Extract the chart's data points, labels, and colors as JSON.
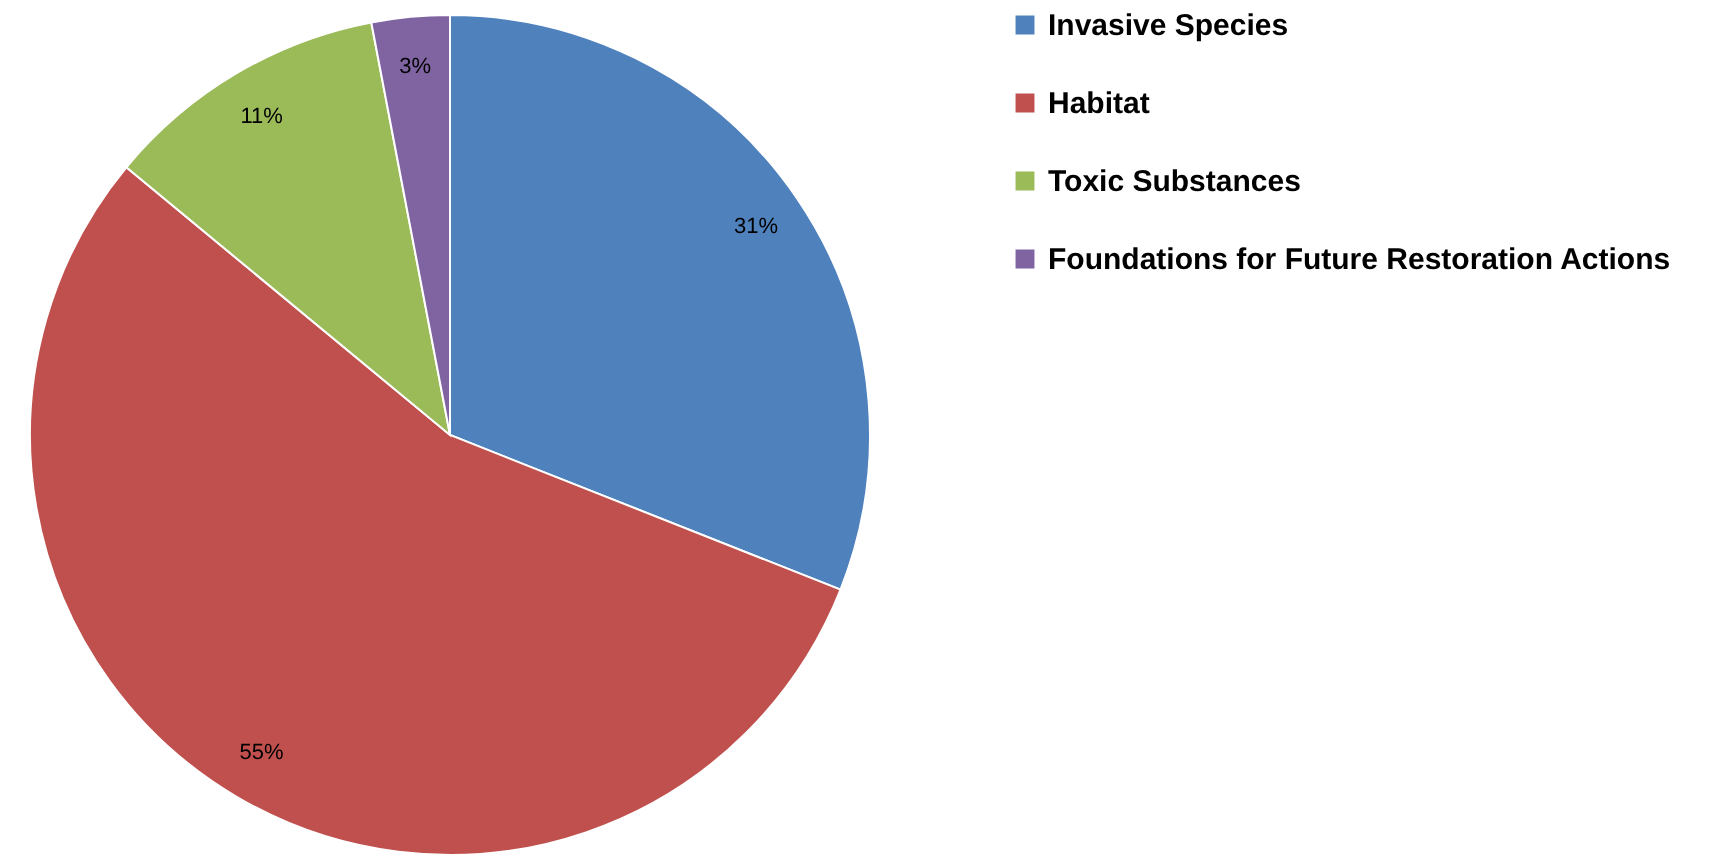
{
  "chart_data": {
    "type": "pie",
    "categories": [
      "Invasive Species",
      "Habitat",
      "Toxic Substances",
      "Foundations for Future Restoration Actions"
    ],
    "values": [
      31,
      55,
      11,
      3
    ],
    "colors": [
      "#4f81bd",
      "#c0504d",
      "#9bbb59",
      "#8064a2"
    ],
    "value_labels": [
      "31%",
      "55%",
      "11%",
      "3%"
    ],
    "legend": "right"
  }
}
